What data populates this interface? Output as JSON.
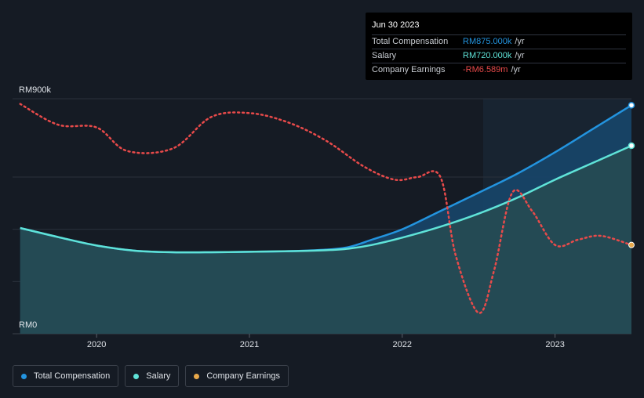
{
  "tooltip": {
    "date": "Jun 30 2023",
    "rows": [
      {
        "label": "Total Compensation",
        "value": "RM875.000k",
        "unit": "/yr",
        "color": "#2394df"
      },
      {
        "label": "Salary",
        "value": "RM720.000k",
        "unit": "/yr",
        "color": "#5fe3d8"
      },
      {
        "label": "Company Earnings",
        "value": "-RM6.589m",
        "unit": "/yr",
        "color": "#e84a4a"
      }
    ]
  },
  "legend": [
    {
      "label": "Total Compensation",
      "color": "#2394df"
    },
    {
      "label": "Salary",
      "color": "#5fe3d8"
    },
    {
      "label": "Company Earnings",
      "color": "#e8a84a"
    }
  ],
  "chart_data": {
    "type": "line",
    "y_tick_labels": [
      "RM900k",
      "RM0"
    ],
    "x_tick_labels": [
      "2020",
      "2021",
      "2022",
      "2023"
    ],
    "ylim": [
      0,
      900
    ],
    "xlim": [
      2019.45,
      2023.5
    ],
    "grid": true,
    "legend_position": "bottom-left",
    "series": [
      {
        "name": "Total Compensation",
        "color": "#2394df",
        "style": "solid-area",
        "x": [
          2019.5,
          2019.75,
          2020.0,
          2020.25,
          2020.5,
          2020.75,
          2021.0,
          2021.25,
          2021.5,
          2021.65,
          2021.8,
          2022.0,
          2022.25,
          2022.5,
          2022.75,
          2023.0,
          2023.25,
          2023.5
        ],
        "values": [
          405,
          370,
          338,
          318,
          312,
          312,
          314,
          316,
          322,
          332,
          360,
          400,
          470,
          540,
          612,
          695,
          785,
          875
        ]
      },
      {
        "name": "Salary",
        "color": "#5fe3d8",
        "style": "solid-area",
        "x": [
          2019.5,
          2019.75,
          2020.0,
          2020.25,
          2020.5,
          2020.75,
          2021.0,
          2021.25,
          2021.5,
          2021.65,
          2021.8,
          2022.0,
          2022.25,
          2022.5,
          2022.75,
          2023.0,
          2023.25,
          2023.5
        ],
        "values": [
          405,
          370,
          338,
          318,
          312,
          312,
          314,
          316,
          320,
          326,
          340,
          368,
          410,
          460,
          520,
          590,
          655,
          720
        ]
      },
      {
        "name": "Company Earnings",
        "color": "#e84a4a",
        "style": "dotted",
        "marker_color": "#e8a84a",
        "x": [
          2019.5,
          2019.75,
          2020.0,
          2020.2,
          2020.5,
          2020.75,
          2021.0,
          2021.25,
          2021.5,
          2021.75,
          2021.95,
          2022.1,
          2022.25,
          2022.35,
          2022.5,
          2022.6,
          2022.72,
          2022.85,
          2023.0,
          2023.15,
          2023.3,
          2023.5
        ],
        "values": [
          880,
          800,
          790,
          700,
          710,
          830,
          845,
          810,
          740,
          640,
          590,
          600,
          600,
          300,
          80,
          240,
          540,
          470,
          340,
          360,
          375,
          340
        ]
      }
    ]
  }
}
